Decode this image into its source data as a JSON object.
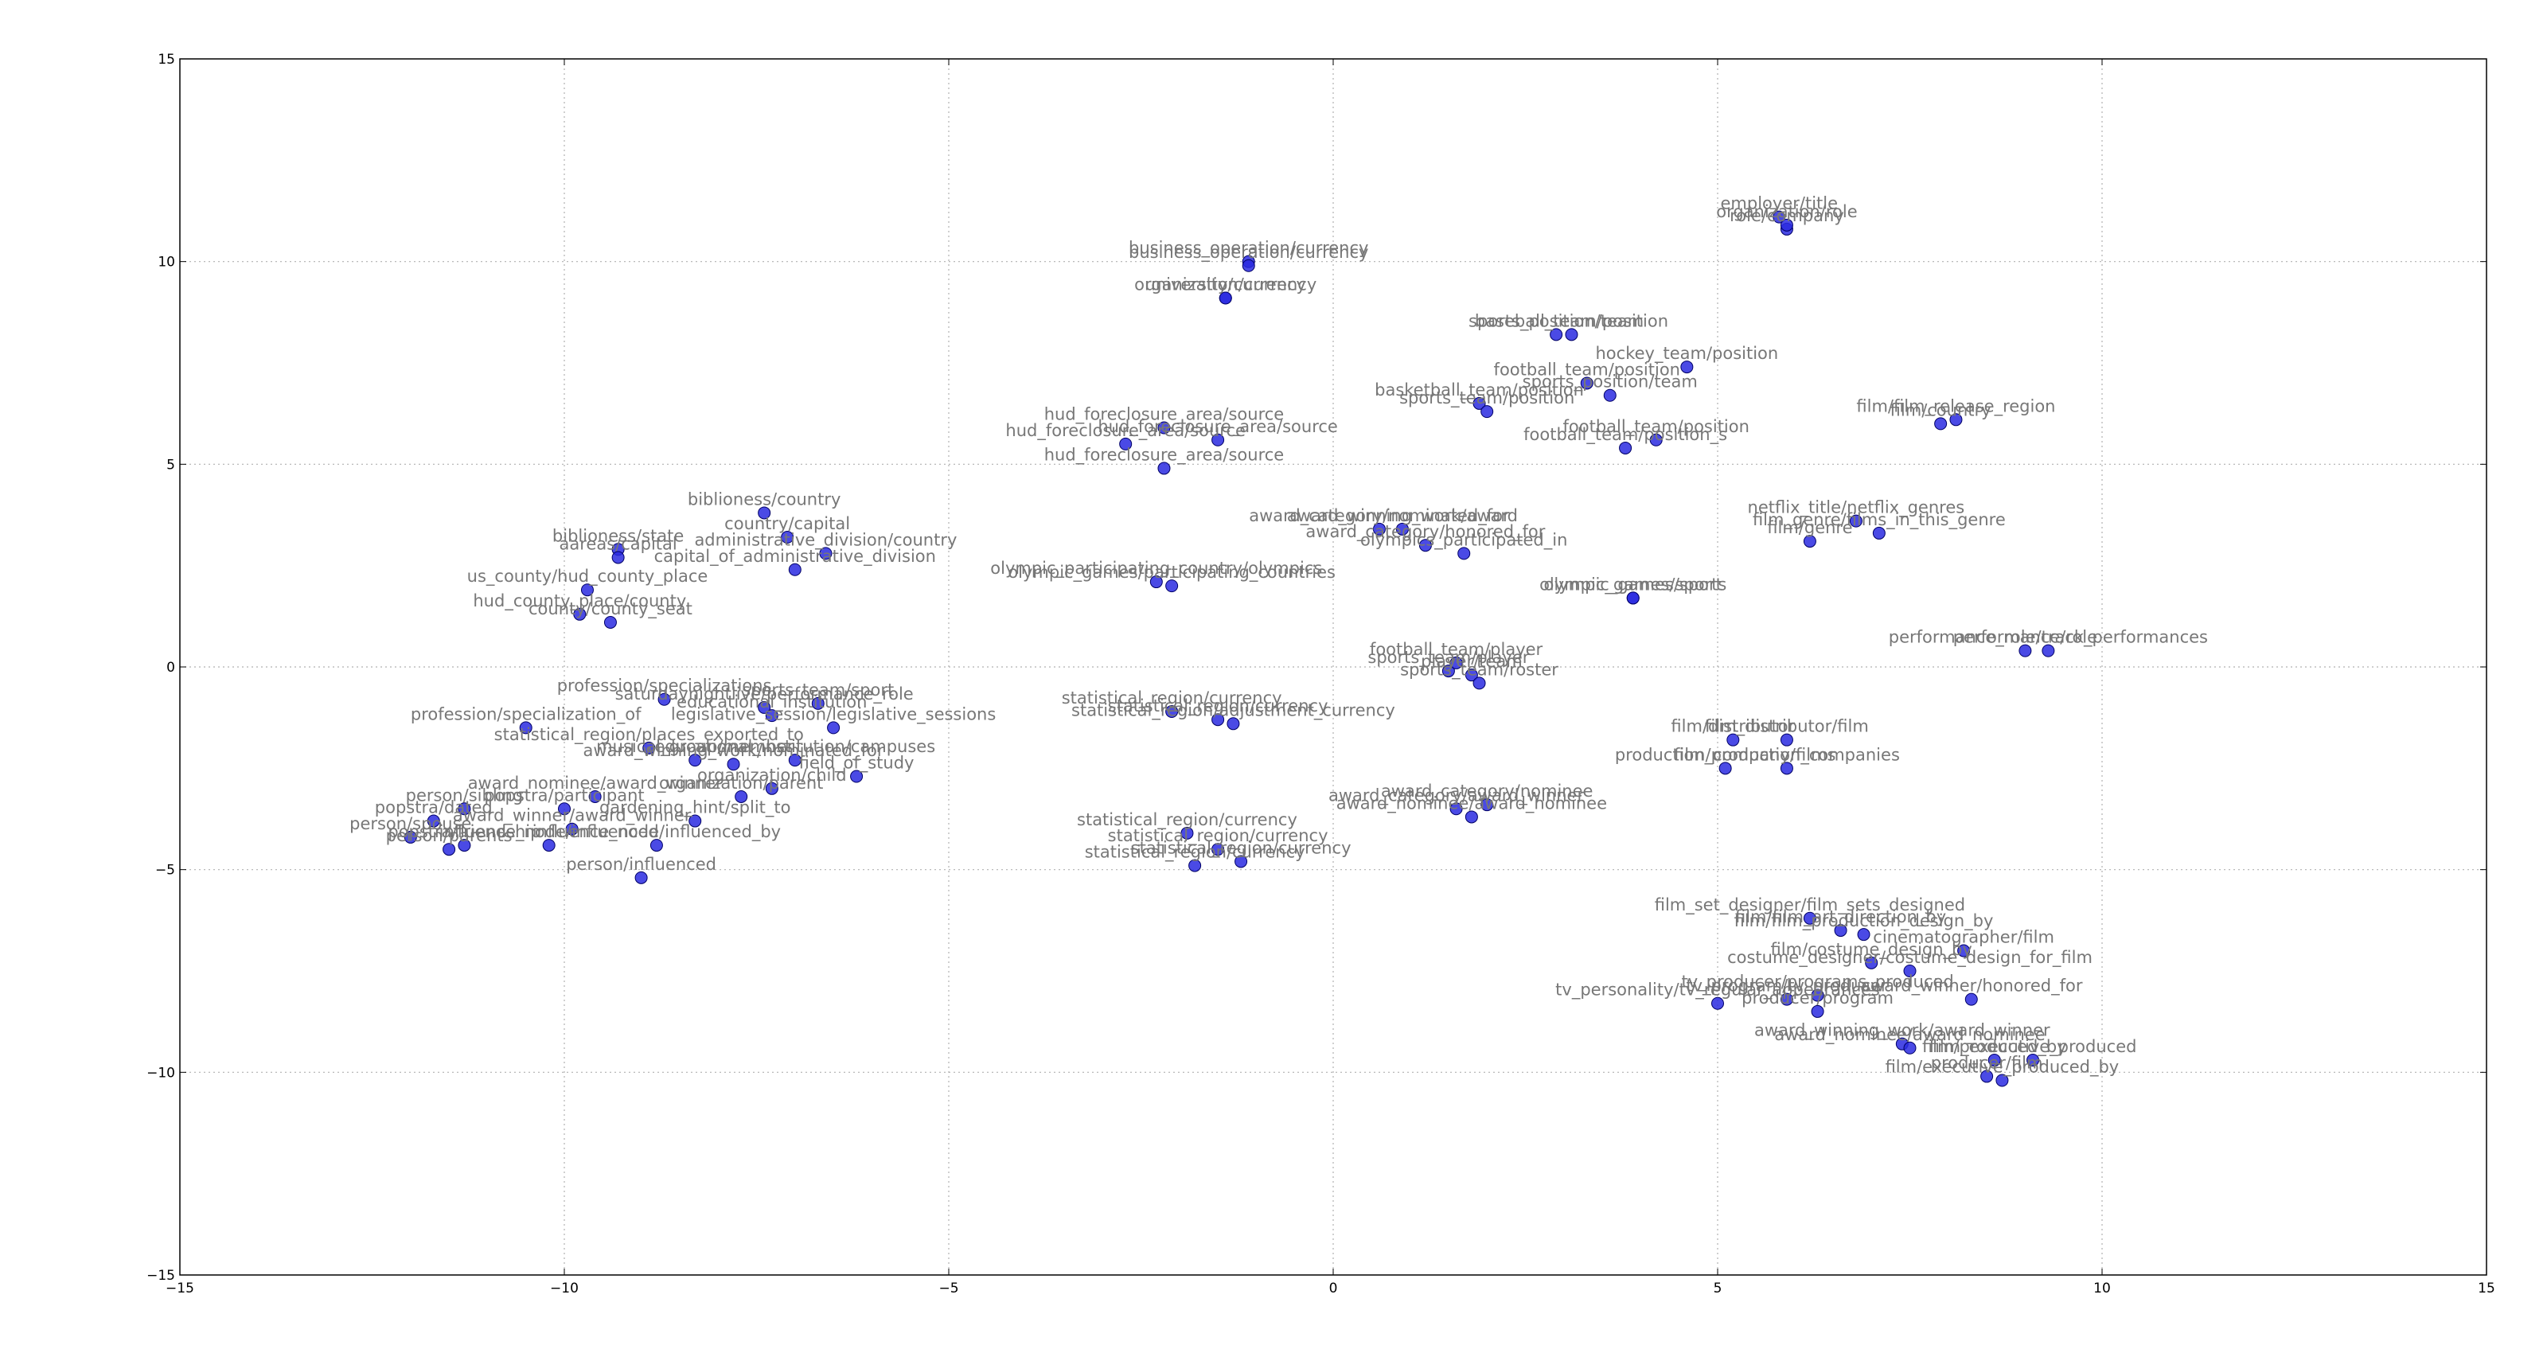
{
  "chart_data": {
    "type": "scatter",
    "title": "",
    "xlabel": "",
    "ylabel": "",
    "xlim": [
      -15,
      15
    ],
    "ylim": [
      -15,
      15
    ],
    "xticks": [
      -15,
      -10,
      -5,
      0,
      5,
      10,
      15
    ],
    "yticks": [
      -15,
      -10,
      -5,
      0,
      5,
      10,
      15
    ],
    "grid": true,
    "colors": {
      "marker": "#2a2ae0",
      "marker_edge": "#000066",
      "label": "#777777",
      "grid": "#b0b0b0"
    },
    "points": [
      {
        "x": 5.8,
        "y": 11.1,
        "label": "employer/title"
      },
      {
        "x": 5.9,
        "y": 10.8,
        "label": "role/company"
      },
      {
        "x": 5.9,
        "y": 10.9,
        "label": "organization/role"
      },
      {
        "x": -1.1,
        "y": 10.0,
        "label": "business_operation/currency"
      },
      {
        "x": -1.1,
        "y": 9.9,
        "label": "business_operation/currency"
      },
      {
        "x": -1.4,
        "y": 9.1,
        "label": "university/currency"
      },
      {
        "x": -1.4,
        "y": 9.1,
        "label": "organization/currency"
      },
      {
        "x": 2.9,
        "y": 8.2,
        "label": "sports_position/team"
      },
      {
        "x": 3.1,
        "y": 8.2,
        "label": "baseball_team/position"
      },
      {
        "x": 4.6,
        "y": 7.4,
        "label": "hockey_team/position"
      },
      {
        "x": 3.3,
        "y": 7.0,
        "label": "football_team/position"
      },
      {
        "x": 1.9,
        "y": 6.5,
        "label": "basketball_team/position"
      },
      {
        "x": 2.0,
        "y": 6.3,
        "label": "sports_team/position"
      },
      {
        "x": 3.6,
        "y": 6.7,
        "label": "sports_position/team"
      },
      {
        "x": 3.8,
        "y": 5.4,
        "label": "football_team/position_s"
      },
      {
        "x": 4.2,
        "y": 5.6,
        "label": "football_team/position"
      },
      {
        "x": 8.1,
        "y": 6.1,
        "label": "film/film_release_region"
      },
      {
        "x": 7.9,
        "y": 6.0,
        "label": "film/country"
      },
      {
        "x": -2.7,
        "y": 5.5,
        "label": "hud_foreclosure_area/source"
      },
      {
        "x": -2.2,
        "y": 5.9,
        "label": "hud_foreclosure_area/source"
      },
      {
        "x": -1.5,
        "y": 5.6,
        "label": "hud_foreclosure_area/source"
      },
      {
        "x": -2.2,
        "y": 4.9,
        "label": "hud_foreclosure_area/source"
      },
      {
        "x": 6.8,
        "y": 3.6,
        "label": "netflix_title/netflix_genres"
      },
      {
        "x": 6.2,
        "y": 3.1,
        "label": "film/genre"
      },
      {
        "x": 7.1,
        "y": 3.3,
        "label": "film_genre/films_in_this_genre"
      },
      {
        "x": 0.6,
        "y": 3.4,
        "label": "award_category/nominated_for"
      },
      {
        "x": 0.9,
        "y": 3.4,
        "label": "award_winning_work/award"
      },
      {
        "x": 1.2,
        "y": 3.0,
        "label": "award_category/honored_for"
      },
      {
        "x": 1.7,
        "y": 2.8,
        "label": "olympics_participated_in"
      },
      {
        "x": -2.3,
        "y": 2.1,
        "label": "olympic_participating_country/olympics"
      },
      {
        "x": -2.1,
        "y": 2.0,
        "label": "olympic_games/participating_countries"
      },
      {
        "x": 3.9,
        "y": 1.7,
        "label": "olympic_games/sports"
      },
      {
        "x": 3.9,
        "y": 1.7,
        "label": "olympic_games/sport"
      },
      {
        "x": -7.4,
        "y": 3.8,
        "label": "biblioness/country"
      },
      {
        "x": -7.1,
        "y": 3.2,
        "label": "country/capital"
      },
      {
        "x": -6.6,
        "y": 2.8,
        "label": "administrative_division/country"
      },
      {
        "x": -9.3,
        "y": 2.9,
        "label": "biblioness/state"
      },
      {
        "x": -9.3,
        "y": 2.7,
        "label": "aareas/capital"
      },
      {
        "x": -7.0,
        "y": 2.4,
        "label": "capital_of_administrative_division"
      },
      {
        "x": -9.7,
        "y": 1.9,
        "label": "us_county/hud_county_place"
      },
      {
        "x": -9.8,
        "y": 1.3,
        "label": "hud_county_place/county"
      },
      {
        "x": -9.4,
        "y": 1.1,
        "label": "county/county_seat"
      },
      {
        "x": 9.0,
        "y": 0.4,
        "label": "performance/role"
      },
      {
        "x": 9.3,
        "y": 0.4,
        "label": "performance_role/track_performances"
      },
      {
        "x": 1.5,
        "y": -0.1,
        "label": "sports_team/player"
      },
      {
        "x": 1.6,
        "y": 0.1,
        "label": "football_team/player"
      },
      {
        "x": 1.8,
        "y": -0.2,
        "label": "player/team"
      },
      {
        "x": 1.9,
        "y": -0.4,
        "label": "sports_team/roster"
      },
      {
        "x": -2.1,
        "y": -1.1,
        "label": "statistical_region/currency"
      },
      {
        "x": -1.5,
        "y": -1.3,
        "label": "statistical_region/currency"
      },
      {
        "x": -1.3,
        "y": -1.4,
        "label": "statistical_region/adjustment_currency"
      },
      {
        "x": -8.7,
        "y": -0.8,
        "label": "profession/specializations"
      },
      {
        "x": -10.5,
        "y": -1.5,
        "label": "profession/specialization_of"
      },
      {
        "x": -7.4,
        "y": -1.0,
        "label": "saturdaynightlive/performance_role"
      },
      {
        "x": -6.7,
        "y": -0.9,
        "label": "sports_team/sport"
      },
      {
        "x": -6.5,
        "y": -1.5,
        "label": "legislative_session/legislative_sessions"
      },
      {
        "x": -7.3,
        "y": -1.2,
        "label": "educational_institution"
      },
      {
        "x": -7.0,
        "y": -2.3,
        "label": "educational_institution/campuses"
      },
      {
        "x": -8.9,
        "y": -2.0,
        "label": "statistical_region/places_exported_to"
      },
      {
        "x": -8.3,
        "y": -2.3,
        "label": "musical_group/member"
      },
      {
        "x": -6.2,
        "y": -2.7,
        "label": "field_of_study"
      },
      {
        "x": -7.8,
        "y": -2.4,
        "label": "award_winning_work/nominated_for"
      },
      {
        "x": -7.3,
        "y": -3.0,
        "label": "organization/child"
      },
      {
        "x": -7.7,
        "y": -3.2,
        "label": "organization/parent"
      },
      {
        "x": -9.6,
        "y": -3.2,
        "label": "award_nominee/award_winner"
      },
      {
        "x": -10.0,
        "y": -3.5,
        "label": "popstra/participant"
      },
      {
        "x": -11.7,
        "y": -3.8,
        "label": "popstra/dated"
      },
      {
        "x": -11.3,
        "y": -3.5,
        "label": "person/sibling"
      },
      {
        "x": -12.0,
        "y": -4.2,
        "label": "person/spouse"
      },
      {
        "x": -11.3,
        "y": -4.4,
        "label": "popstra/friendship"
      },
      {
        "x": -11.5,
        "y": -4.5,
        "label": "person/parents"
      },
      {
        "x": -9.9,
        "y": -4.0,
        "label": "award_winner/award_winner"
      },
      {
        "x": -8.3,
        "y": -3.8,
        "label": "gardening_hint/split_to"
      },
      {
        "x": -10.2,
        "y": -4.4,
        "label": "influence_node/influenced"
      },
      {
        "x": -8.8,
        "y": -4.4,
        "label": "influence_node/influenced_by"
      },
      {
        "x": -9.0,
        "y": -5.2,
        "label": "person/influenced"
      },
      {
        "x": 1.6,
        "y": -3.5,
        "label": "award_category/award_winner"
      },
      {
        "x": 1.8,
        "y": -3.7,
        "label": "award_nominee/award_nominee"
      },
      {
        "x": 2.0,
        "y": -3.4,
        "label": "award_category/nominee"
      },
      {
        "x": -1.9,
        "y": -4.1,
        "label": "statistical_region/currency"
      },
      {
        "x": -1.8,
        "y": -4.9,
        "label": "statistical_region/currency"
      },
      {
        "x": -1.5,
        "y": -4.5,
        "label": "statistical_region/currency"
      },
      {
        "x": -1.2,
        "y": -4.8,
        "label": "statistical_region/currency"
      },
      {
        "x": 5.2,
        "y": -1.8,
        "label": "film/distributor"
      },
      {
        "x": 5.9,
        "y": -1.8,
        "label": "film_distributor/film"
      },
      {
        "x": 5.1,
        "y": -2.5,
        "label": "production_company/films"
      },
      {
        "x": 5.9,
        "y": -2.5,
        "label": "film/production_companies"
      },
      {
        "x": 6.2,
        "y": -6.2,
        "label": "film_set_designer/film_sets_designed"
      },
      {
        "x": 6.6,
        "y": -6.5,
        "label": "film/film_art_direction_by"
      },
      {
        "x": 6.9,
        "y": -6.6,
        "label": "film/film_production_design_by"
      },
      {
        "x": 8.2,
        "y": -7.0,
        "label": "cinematographer/film"
      },
      {
        "x": 7.0,
        "y": -7.3,
        "label": "film/costume_design_by"
      },
      {
        "x": 7.5,
        "y": -7.5,
        "label": "costume_designer/costume_design_for_film"
      },
      {
        "x": 5.0,
        "y": -8.3,
        "label": "tv_personality/tv_regular_appearances"
      },
      {
        "x": 5.9,
        "y": -8.2,
        "label": "tv_program/tv_producer"
      },
      {
        "x": 6.3,
        "y": -8.1,
        "label": "tv_producer/programs_produced"
      },
      {
        "x": 6.3,
        "y": -8.5,
        "label": "producer/program"
      },
      {
        "x": 8.3,
        "y": -8.2,
        "label": "award_winner/honored_for"
      },
      {
        "x": 7.4,
        "y": -9.3,
        "label": "award_winning_work/award_winner"
      },
      {
        "x": 7.5,
        "y": -9.4,
        "label": "award_nominee/award_nominee"
      },
      {
        "x": 8.5,
        "y": -10.1,
        "label": "producer/film"
      },
      {
        "x": 8.7,
        "y": -10.2,
        "label": "film/executive_produced_by"
      },
      {
        "x": 8.6,
        "y": -9.7,
        "label": "film/produced_by"
      },
      {
        "x": 9.1,
        "y": -9.7,
        "label": "film_executive_produced"
      }
    ]
  }
}
